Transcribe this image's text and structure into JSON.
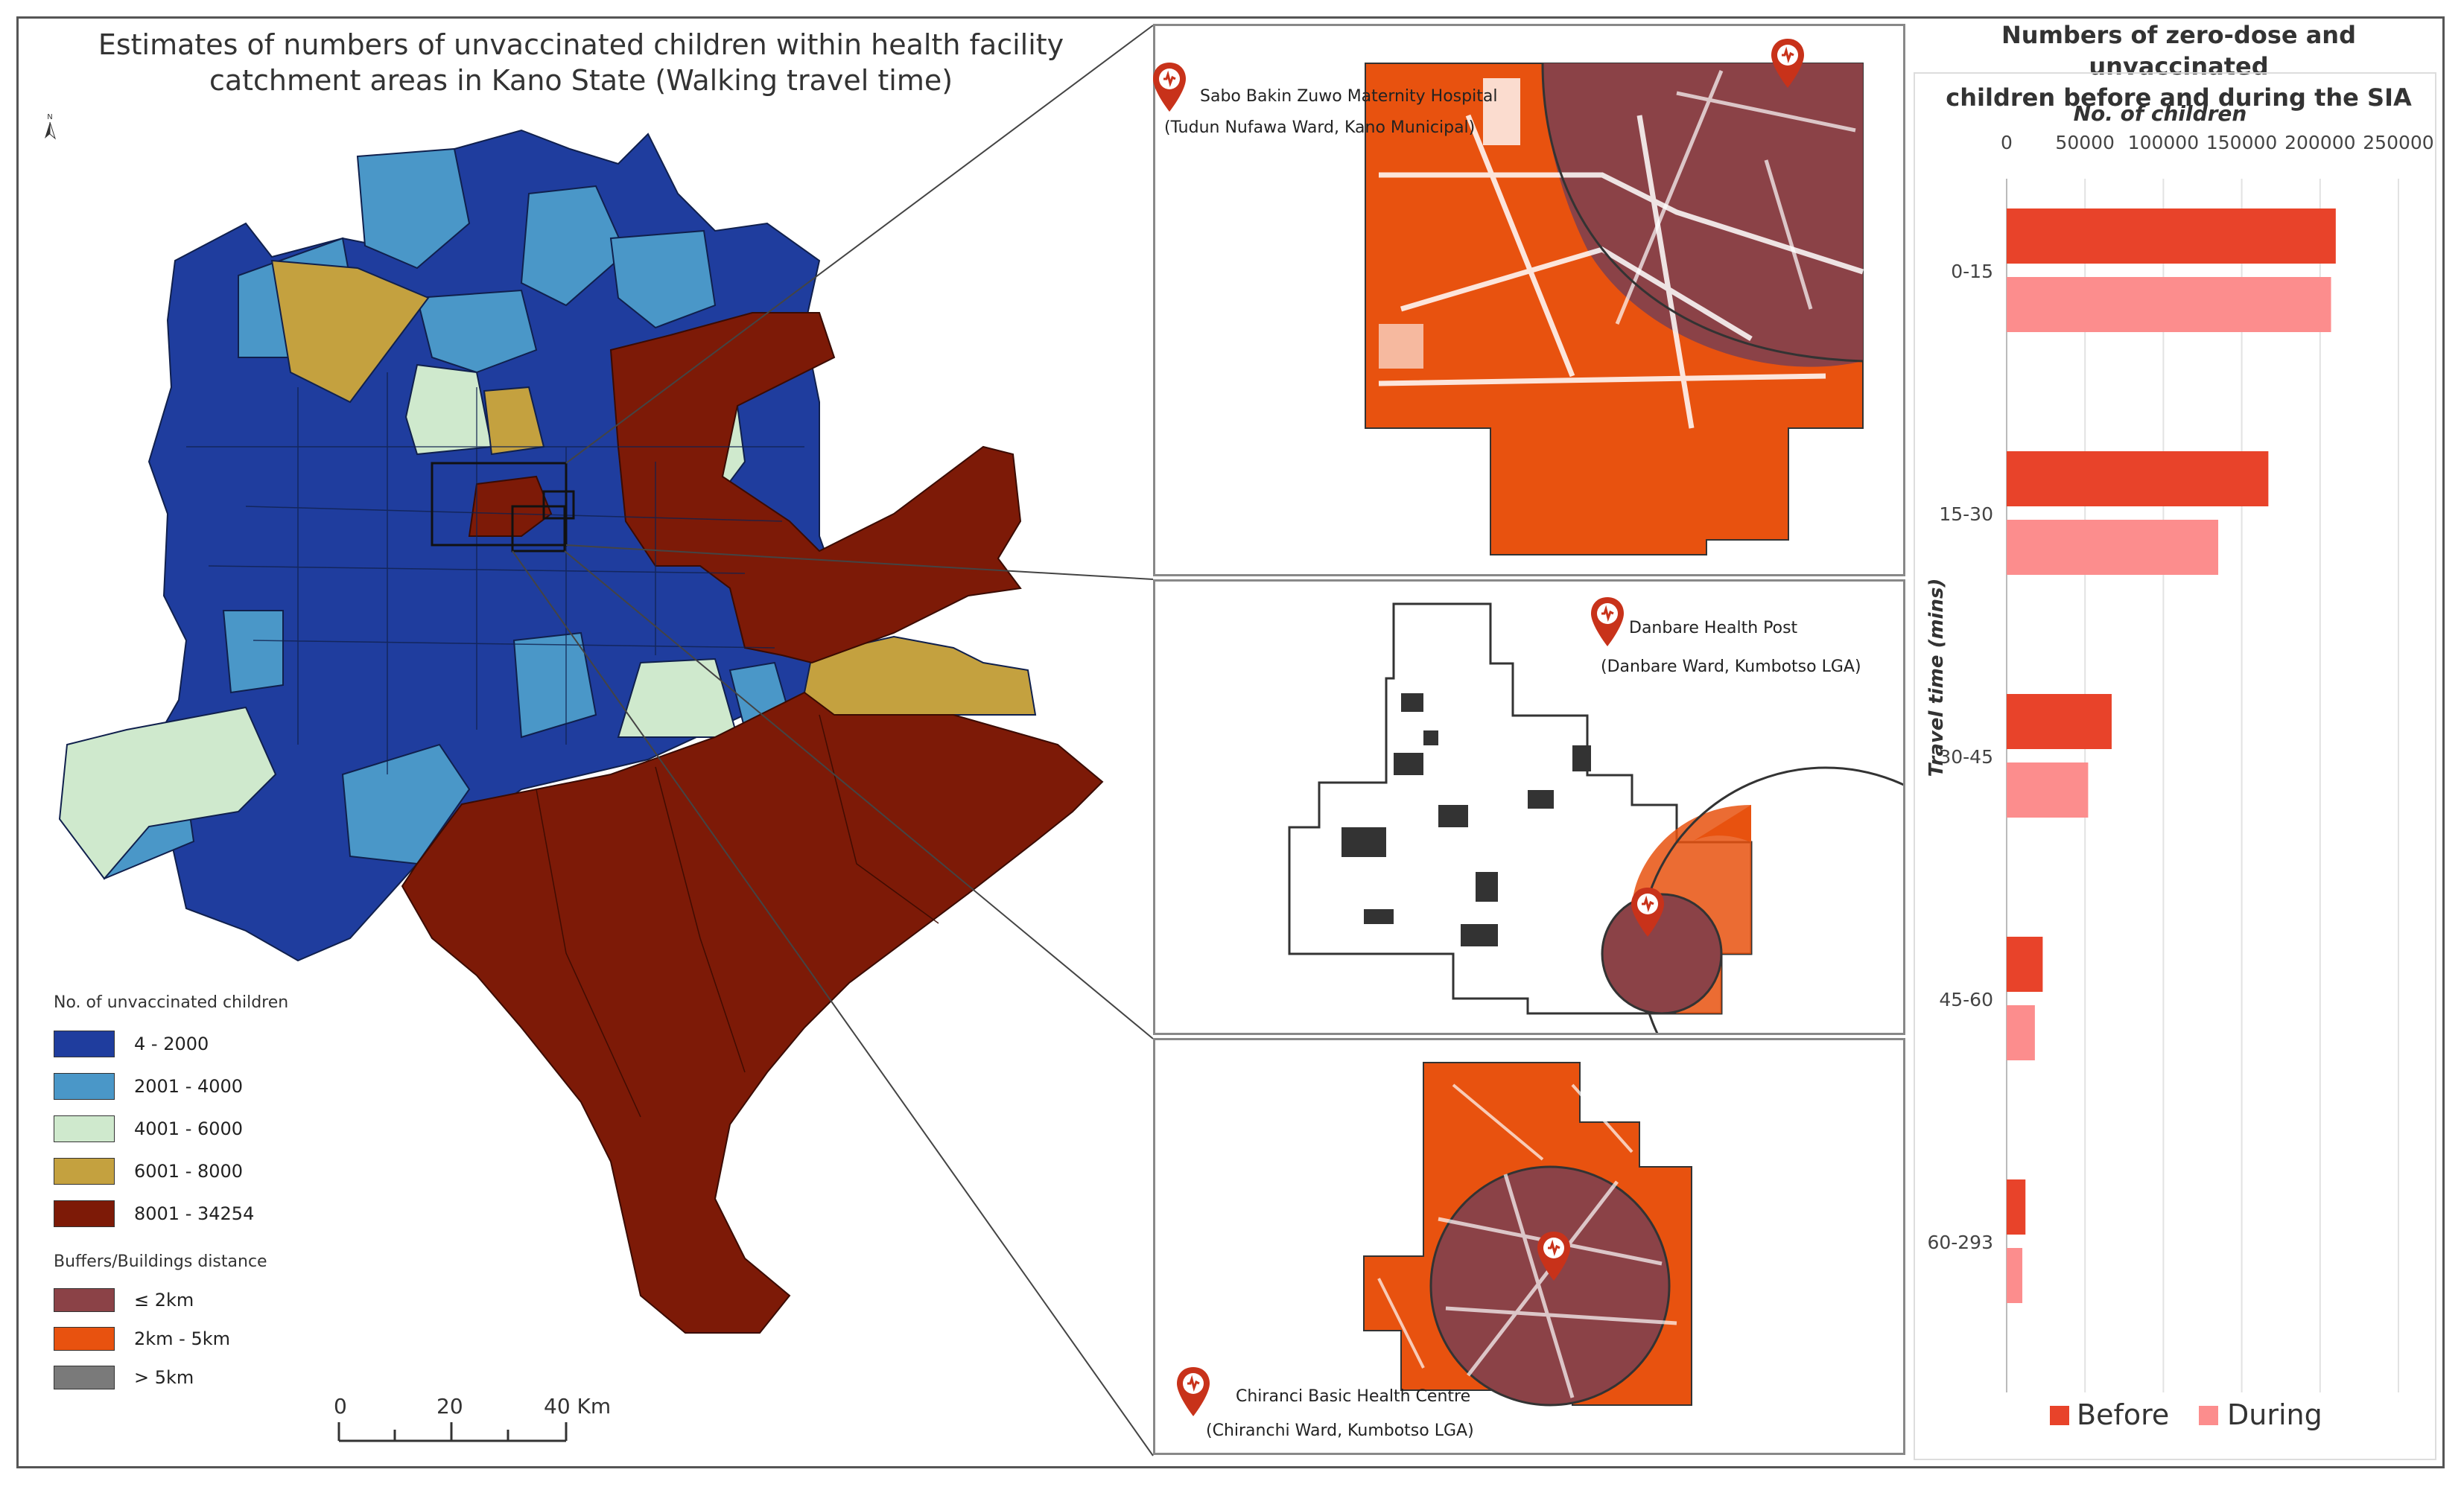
{
  "map": {
    "title_line1": "Estimates of numbers of unvaccinated children within health facility",
    "title_line2": "catchment areas in Kano State (Walking travel time)",
    "north_symbol": "N",
    "scale_bar": {
      "label_0": "0",
      "label_20": "20",
      "label_40": "40 Km"
    }
  },
  "legend": {
    "children_title": "No. of unvaccinated children",
    "children_classes": [
      {
        "label": "4 - 2000",
        "color": "#1f3d9e"
      },
      {
        "label": "2001 - 4000",
        "color": "#4a97c8"
      },
      {
        "label": "4001 - 6000",
        "color": "#cfe9cd"
      },
      {
        "label": "6001 - 8000",
        "color": "#c4a13f"
      },
      {
        "label": "8001 - 34254",
        "color": "#7d1a07"
      }
    ],
    "buffer_title": "Buffers/Buildings distance",
    "buffer_classes": [
      {
        "label": "≤ 2km",
        "color": "#8b4247"
      },
      {
        "label": "2km - 5km",
        "color": "#e8520f"
      },
      {
        "label": "> 5km",
        "color": "#7a7a7a"
      }
    ]
  },
  "insets": [
    {
      "facility": "Sabo Bakin Zuwo Maternity Hospital",
      "ward": "(Tudun Nufawa Ward, Kano Municipal)"
    },
    {
      "facility": "Danbare Health Post",
      "ward": "(Danbare Ward, Kumbotso LGA)"
    },
    {
      "facility": "Chiranci Basic Health Centre",
      "ward": "(Chiranchi Ward, Kumbotso LGA)"
    }
  ],
  "icons": [
    "health-facility-pin-icon",
    "north-arrow-icon"
  ],
  "chart_data": {
    "type": "bar",
    "orientation": "horizontal",
    "title": "Numbers of zero-dose and unvaccinated children before and during the SIA",
    "title_line1": "Numbers of zero-dose and unvaccinated",
    "title_line2": "children before and during the SIA",
    "xlabel": "No. of children",
    "ylabel": "Travel time (mins)",
    "xlim": [
      0,
      250000
    ],
    "xticks": [
      "0",
      "50000",
      "100000",
      "150000",
      "200000",
      "250000"
    ],
    "xtick_values": [
      0,
      50000,
      100000,
      150000,
      200000,
      250000
    ],
    "categories": [
      "0-15",
      "15-30",
      "30-45",
      "45-60",
      "60-293"
    ],
    "series": [
      {
        "name": "Before",
        "color": "#e8432a",
        "values": [
          210000,
          167000,
          67000,
          23000,
          12000
        ]
      },
      {
        "name": "During",
        "color": "#fc8d8d",
        "values": [
          207000,
          135000,
          52000,
          18000,
          10000
        ]
      }
    ],
    "legend_position": "bottom",
    "grid": true
  }
}
